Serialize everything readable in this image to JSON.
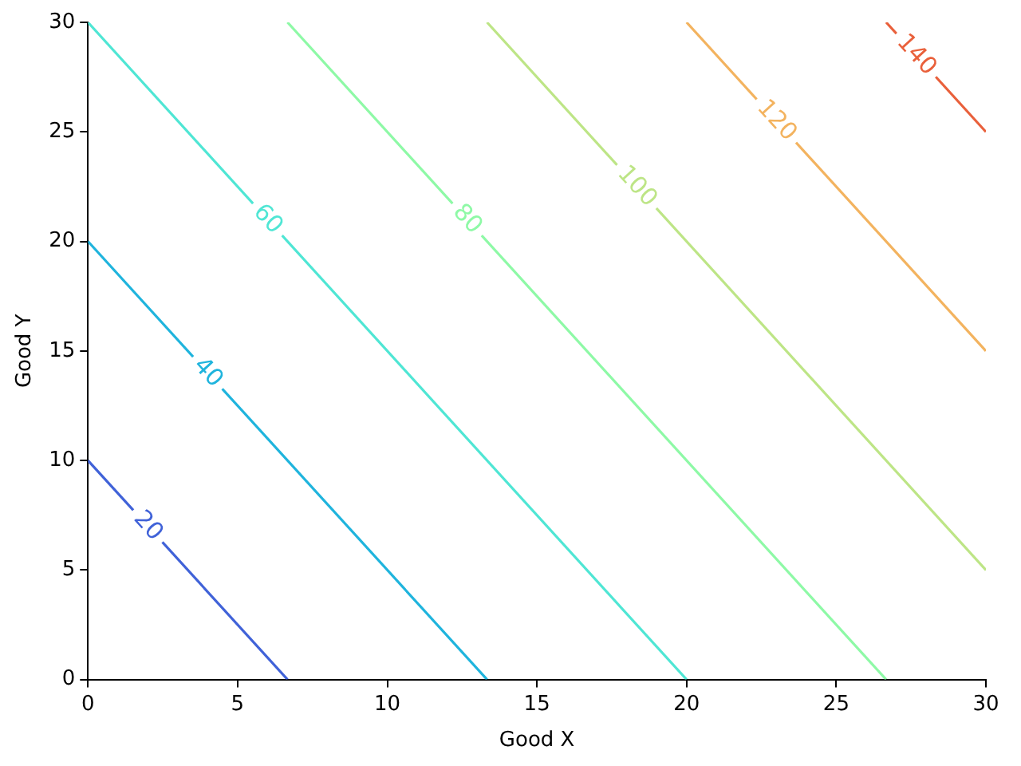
{
  "chart_data": {
    "type": "line",
    "xlabel": "Good X",
    "ylabel": "Good Y",
    "xlim": [
      0,
      30
    ],
    "ylim": [
      0,
      30
    ],
    "xticks": [
      0,
      5,
      10,
      15,
      20,
      25,
      30
    ],
    "yticks": [
      0,
      5,
      10,
      15,
      20,
      25,
      30
    ],
    "grid": false,
    "legend": false,
    "marker": "none",
    "line_style": "solid",
    "series": [
      {
        "name": "20",
        "color": "#4062d8",
        "x": [
          0,
          6.667
        ],
        "values": [
          10,
          0
        ]
      },
      {
        "name": "40",
        "color": "#1fb4dd",
        "x": [
          0,
          13.333
        ],
        "values": [
          20,
          0
        ]
      },
      {
        "name": "60",
        "color": "#4fe6d4",
        "x": [
          0,
          20
        ],
        "values": [
          30,
          0
        ]
      },
      {
        "name": "80",
        "color": "#8ef9a6",
        "x": [
          6.667,
          26.667
        ],
        "values": [
          30,
          0
        ]
      },
      {
        "name": "100",
        "color": "#bde586",
        "x": [
          13.333,
          30
        ],
        "values": [
          30,
          5
        ]
      },
      {
        "name": "120",
        "color": "#f3b35f",
        "x": [
          20,
          30
        ],
        "values": [
          30,
          15
        ]
      },
      {
        "name": "140",
        "color": "#e9603b",
        "x": [
          26.667,
          30
        ],
        "values": [
          30,
          25
        ]
      }
    ]
  }
}
